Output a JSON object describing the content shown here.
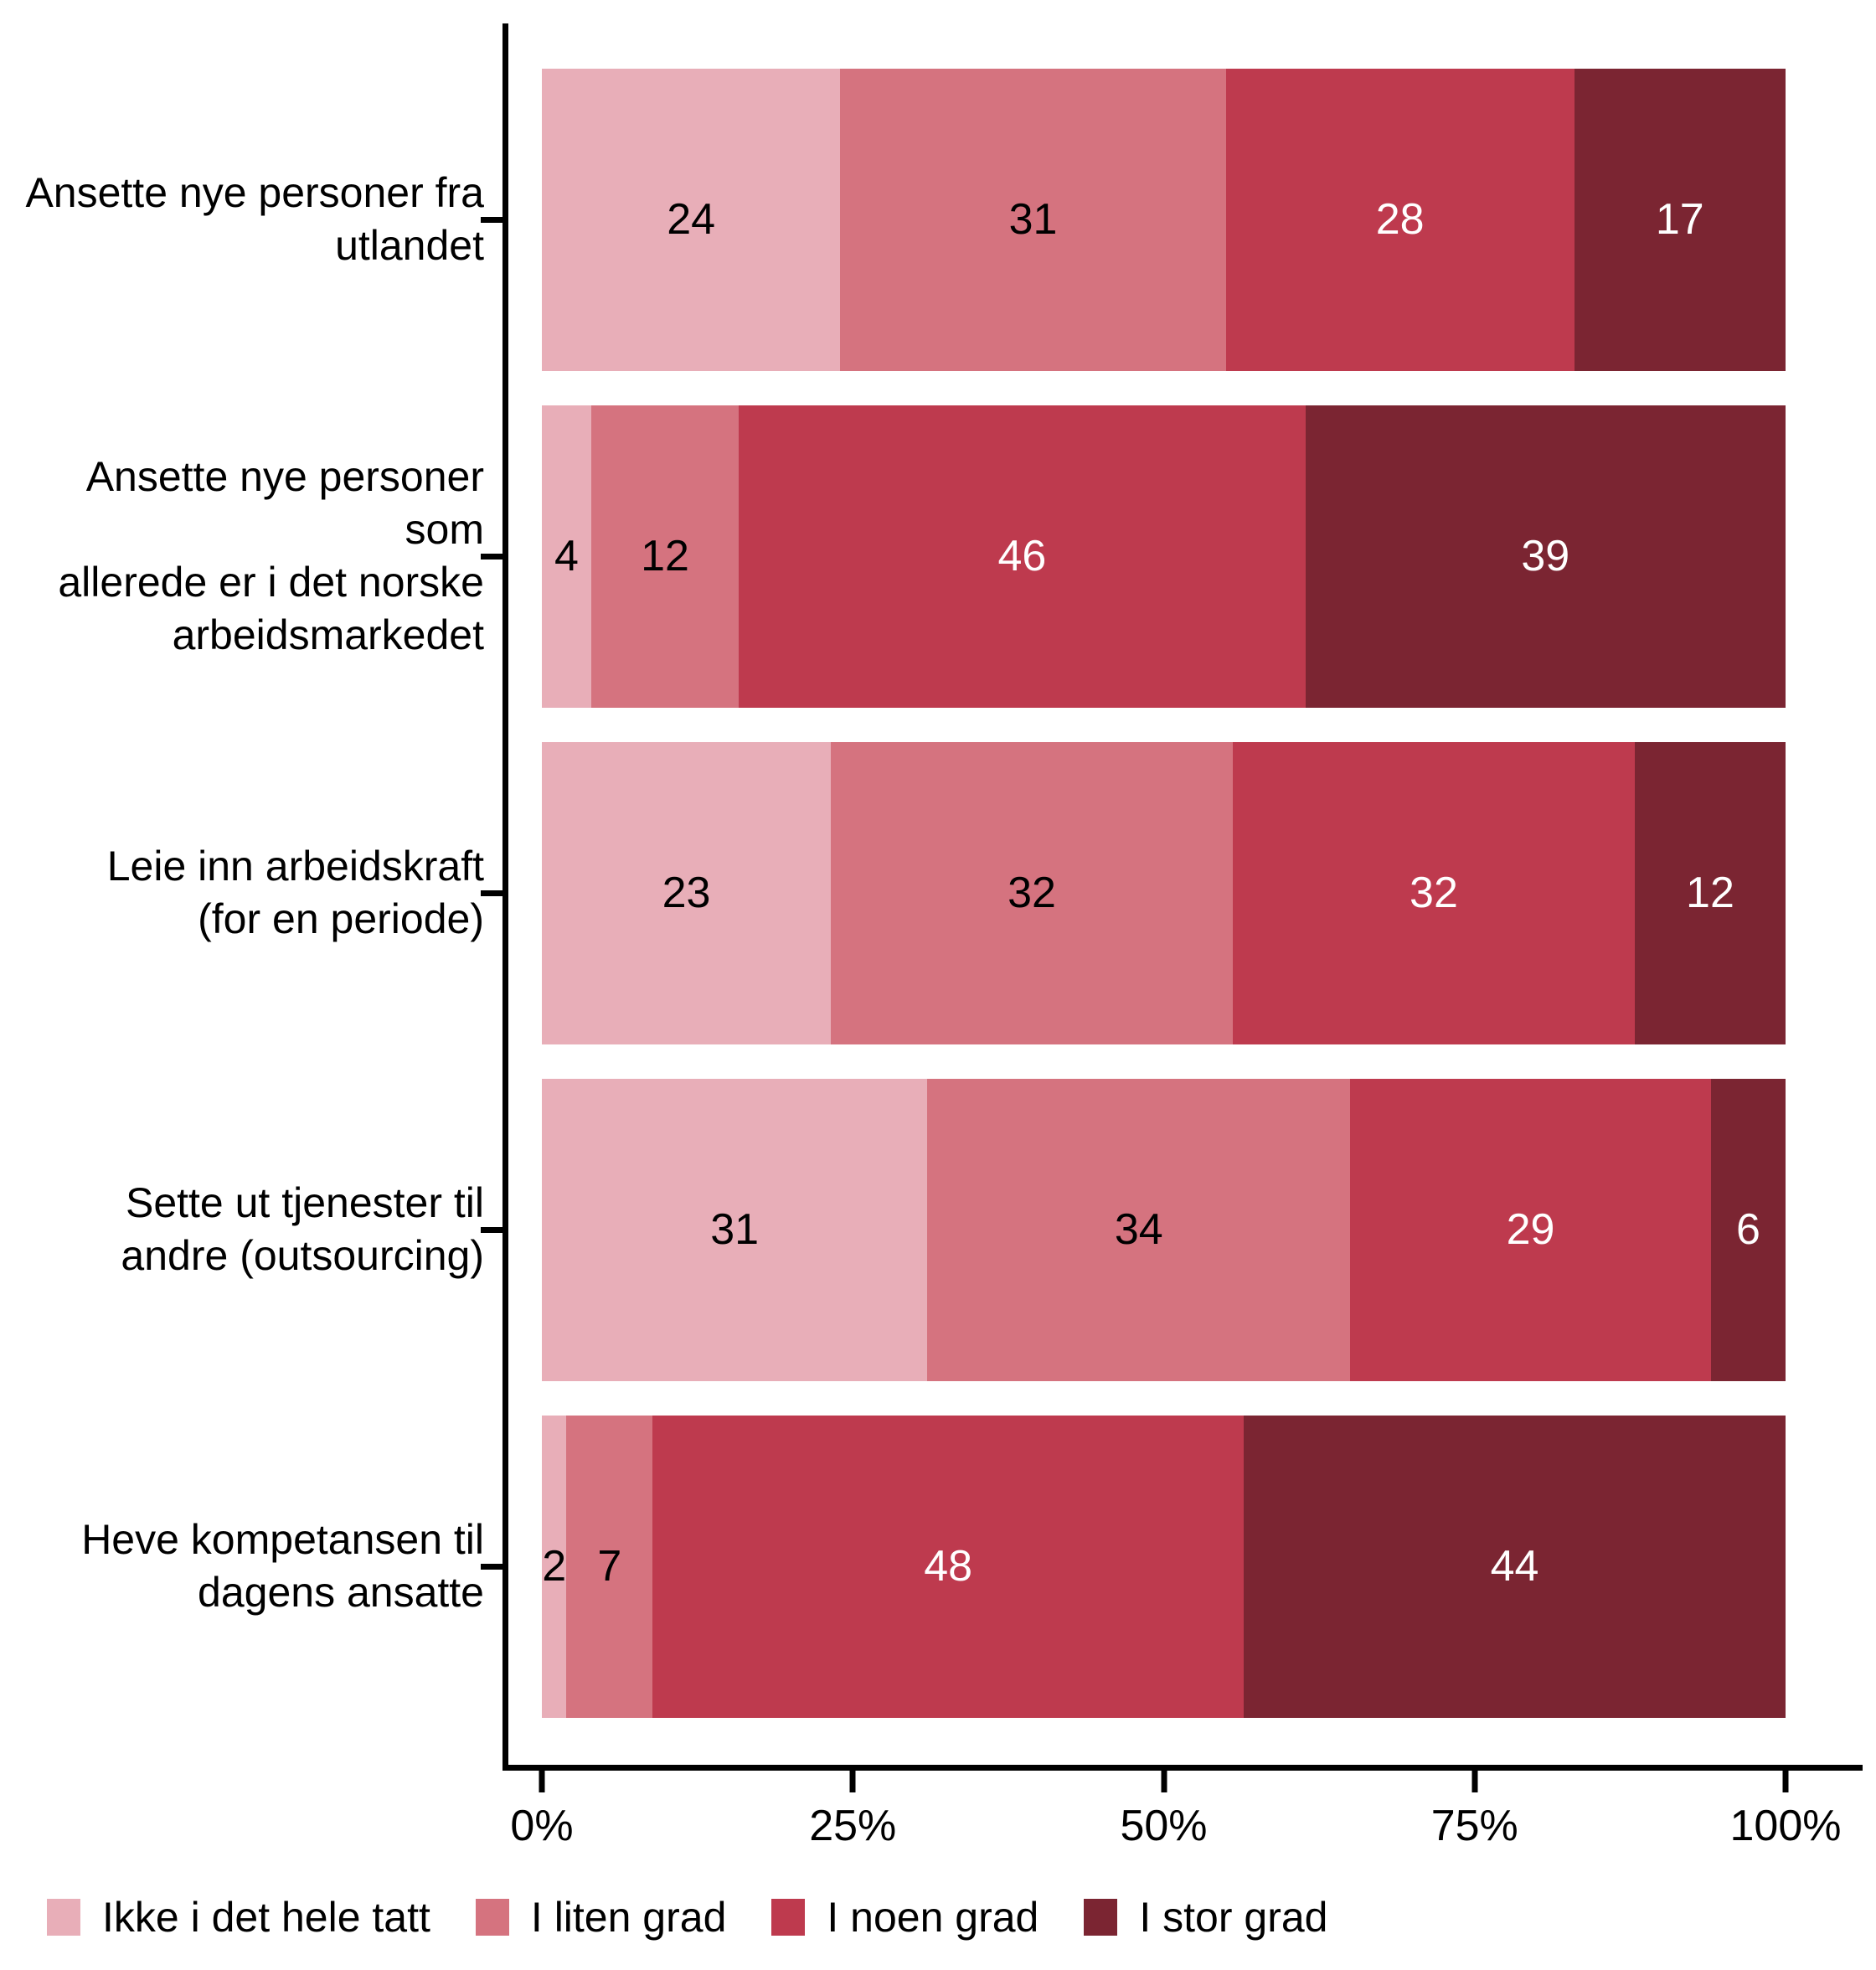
{
  "chart_data": {
    "type": "bar",
    "orientation": "horizontal",
    "stacked": true,
    "unit": "percent",
    "title": "",
    "xlabel": "",
    "ylabel": "",
    "xlim": [
      0,
      100
    ],
    "x_ticks": [
      "0%",
      "25%",
      "50%",
      "75%",
      "100%"
    ],
    "x_tick_positions": [
      0,
      25,
      50,
      75,
      100
    ],
    "grid": false,
    "legend_position": "bottom-left",
    "axis_color": "#000000",
    "categories": [
      [
        "Ansette nye personer fra",
        "utlandet"
      ],
      [
        "Ansette nye personer som",
        "allerede er i det norske",
        "arbeidsmarkedet"
      ],
      [
        "Leie inn arbeidskraft",
        "(for en periode)"
      ],
      [
        "Sette ut tjenester til",
        "andre (outsourcing)"
      ],
      [
        "Heve kompetansen til",
        "dagens ansatte"
      ]
    ],
    "series": [
      {
        "name": "Ikke i det hele tatt",
        "color": "#E8AEB8",
        "label_color": "#000000",
        "values": [
          24,
          4,
          23,
          31,
          2
        ]
      },
      {
        "name": "I liten grad",
        "color": "#D5737F",
        "label_color": "#000000",
        "values": [
          31,
          12,
          32,
          34,
          7
        ]
      },
      {
        "name": "I noen grad",
        "color": "#BE3A4E",
        "label_color": "#FFFFFF",
        "values": [
          28,
          46,
          32,
          29,
          48
        ]
      },
      {
        "name": "I stor grad",
        "color": "#7B2532",
        "label_color": "#FFFFFF",
        "values": [
          17,
          39,
          12,
          6,
          44
        ]
      }
    ]
  }
}
